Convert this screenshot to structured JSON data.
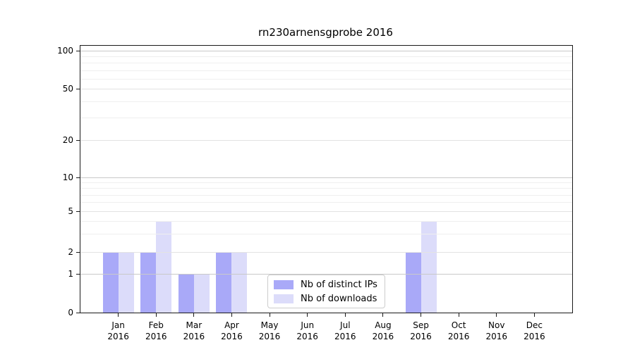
{
  "chart_data": {
    "type": "bar",
    "title": "rn230arnensgprobe 2016",
    "categories": [
      "Jan",
      "Feb",
      "Mar",
      "Apr",
      "May",
      "Jun",
      "Jul",
      "Aug",
      "Sep",
      "Oct",
      "Nov",
      "Dec"
    ],
    "x_year_label": "2016",
    "series": [
      {
        "name": "Nb of distinct IPs",
        "color": "#a9a9f8",
        "values": [
          2,
          2,
          1,
          2,
          0,
          0,
          0,
          0,
          2,
          0,
          0,
          0
        ]
      },
      {
        "name": "Nb of downloads",
        "color": "#dcdcfa",
        "values": [
          2,
          4,
          1,
          2,
          0,
          0,
          0,
          0,
          4,
          0,
          0,
          0
        ]
      }
    ],
    "y_ticks": [
      0,
      1,
      2,
      5,
      10,
      20,
      50,
      100
    ],
    "y_scale": "symlog",
    "ylim": [
      0,
      110
    ],
    "grid": true,
    "legend_position": "lower center"
  }
}
